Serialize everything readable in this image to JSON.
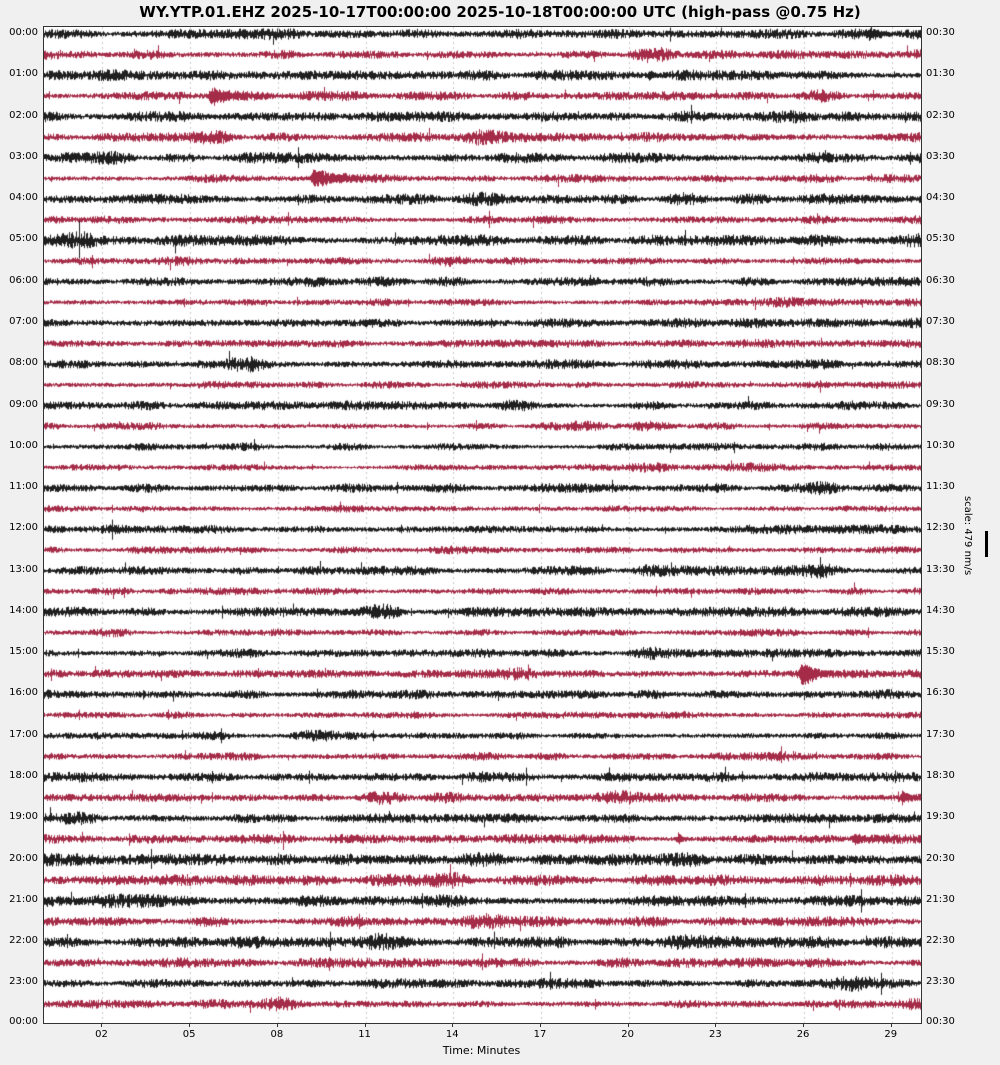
{
  "title": "WY.YTP.01.EHZ 2025-10-17T00:00:00 2025-10-18T00:00:00 UTC (high-pass @0.75 Hz)",
  "xlabel": "Time: Minutes",
  "scale_label": "scale: 479 nm/s",
  "chart_data": {
    "type": "line",
    "subtype": "helicorder-dayplot",
    "station_id": "WY.YTP.01.EHZ",
    "time_span_utc": [
      "2025-10-17T00:00:00",
      "2025-10-18T00:00:00"
    ],
    "filter": "high-pass @0.75 Hz",
    "scale_nm_per_s": 479,
    "minutes_per_row": 30,
    "x_range_minutes": [
      0,
      30
    ],
    "x_ticks": [
      2,
      5,
      8,
      11,
      14,
      17,
      20,
      23,
      26,
      29
    ],
    "x_tick_labels": [
      "02",
      "05",
      "08",
      "11",
      "14",
      "17",
      "20",
      "23",
      "26",
      "29"
    ],
    "left_axis_labels": [
      "00:00",
      "01:00",
      "02:00",
      "03:00",
      "04:00",
      "05:00",
      "06:00",
      "07:00",
      "08:00",
      "09:00",
      "10:00",
      "11:00",
      "12:00",
      "13:00",
      "14:00",
      "15:00",
      "16:00",
      "17:00",
      "18:00",
      "19:00",
      "20:00",
      "21:00",
      "22:00",
      "23:00"
    ],
    "left_axis_bottom_label": "00:00",
    "right_axis_labels": [
      "00:30",
      "01:30",
      "02:30",
      "03:30",
      "04:30",
      "05:30",
      "06:30",
      "07:30",
      "08:30",
      "09:30",
      "10:30",
      "11:30",
      "12:30",
      "13:30",
      "14:30",
      "15:30",
      "16:30",
      "17:30",
      "18:30",
      "19:30",
      "20:30",
      "21:30",
      "22:30",
      "23:30"
    ],
    "right_axis_bottom_label": "00:30",
    "colors": {
      "trace_even": "#1f1f1f",
      "trace_odd": "#a52c48",
      "grid": "#c9c9c9",
      "figure_bg": "#f0f0f0",
      "plot_bg": "#ffffff",
      "axis": "#333333"
    },
    "grid": "vertical-dashed",
    "legend": "none",
    "rows": [
      {
        "start": "00:00",
        "end": "00:30",
        "color": "black",
        "amp": 3.0
      },
      {
        "start": "00:30",
        "end": "01:00",
        "color": "red",
        "amp": 2.8
      },
      {
        "start": "01:00",
        "end": "01:30",
        "color": "black",
        "amp": 3.0
      },
      {
        "start": "01:30",
        "end": "02:00",
        "color": "red",
        "amp": 2.6
      },
      {
        "start": "02:00",
        "end": "02:30",
        "color": "black",
        "amp": 3.0
      },
      {
        "start": "02:30",
        "end": "03:00",
        "color": "red",
        "amp": 2.8
      },
      {
        "start": "03:00",
        "end": "03:30",
        "color": "black",
        "amp": 3.0
      },
      {
        "start": "03:30",
        "end": "04:00",
        "color": "red",
        "amp": 2.6
      },
      {
        "start": "04:00",
        "end": "04:30",
        "color": "black",
        "amp": 3.0
      },
      {
        "start": "04:30",
        "end": "05:00",
        "color": "red",
        "amp": 2.4
      },
      {
        "start": "05:00",
        "end": "05:30",
        "color": "black",
        "amp": 3.2
      },
      {
        "start": "05:30",
        "end": "06:00",
        "color": "red",
        "amp": 2.2
      },
      {
        "start": "06:00",
        "end": "06:30",
        "color": "black",
        "amp": 2.8
      },
      {
        "start": "06:30",
        "end": "07:00",
        "color": "red",
        "amp": 2.4
      },
      {
        "start": "07:00",
        "end": "07:30",
        "color": "black",
        "amp": 3.0
      },
      {
        "start": "07:30",
        "end": "08:00",
        "color": "red",
        "amp": 2.4
      },
      {
        "start": "08:00",
        "end": "08:30",
        "color": "black",
        "amp": 2.8
      },
      {
        "start": "08:30",
        "end": "09:00",
        "color": "red",
        "amp": 2.2
      },
      {
        "start": "09:00",
        "end": "09:30",
        "color": "black",
        "amp": 2.6
      },
      {
        "start": "09:30",
        "end": "10:00",
        "color": "red",
        "amp": 2.2
      },
      {
        "start": "10:00",
        "end": "10:30",
        "color": "black",
        "amp": 2.1
      },
      {
        "start": "10:30",
        "end": "11:00",
        "color": "red",
        "amp": 2.0
      },
      {
        "start": "11:00",
        "end": "11:30",
        "color": "black",
        "amp": 2.6
      },
      {
        "start": "11:30",
        "end": "12:00",
        "color": "red",
        "amp": 2.0
      },
      {
        "start": "12:00",
        "end": "12:30",
        "color": "black",
        "amp": 2.6
      },
      {
        "start": "12:30",
        "end": "13:00",
        "color": "red",
        "amp": 2.2
      },
      {
        "start": "13:00",
        "end": "13:30",
        "color": "black",
        "amp": 2.8
      },
      {
        "start": "13:30",
        "end": "14:00",
        "color": "red",
        "amp": 2.2
      },
      {
        "start": "14:00",
        "end": "14:30",
        "color": "black",
        "amp": 2.8
      },
      {
        "start": "14:30",
        "end": "15:00",
        "color": "red",
        "amp": 2.0
      },
      {
        "start": "15:00",
        "end": "15:30",
        "color": "black",
        "amp": 2.6
      },
      {
        "start": "15:30",
        "end": "16:00",
        "color": "red",
        "amp": 2.4
      },
      {
        "start": "16:00",
        "end": "16:30",
        "color": "black",
        "amp": 2.6
      },
      {
        "start": "16:30",
        "end": "17:00",
        "color": "red",
        "amp": 2.0
      },
      {
        "start": "17:00",
        "end": "17:30",
        "color": "black",
        "amp": 2.2
      },
      {
        "start": "17:30",
        "end": "18:00",
        "color": "red",
        "amp": 2.2
      },
      {
        "start": "18:00",
        "end": "18:30",
        "color": "black",
        "amp": 3.2
      },
      {
        "start": "18:30",
        "end": "19:00",
        "color": "red",
        "amp": 2.6
      },
      {
        "start": "19:00",
        "end": "19:30",
        "color": "black",
        "amp": 2.6
      },
      {
        "start": "19:30",
        "end": "20:00",
        "color": "red",
        "amp": 2.6
      },
      {
        "start": "20:00",
        "end": "20:30",
        "color": "black",
        "amp": 3.6
      },
      {
        "start": "20:30",
        "end": "21:00",
        "color": "red",
        "amp": 3.4
      },
      {
        "start": "21:00",
        "end": "21:30",
        "color": "black",
        "amp": 3.8
      },
      {
        "start": "21:30",
        "end": "22:00",
        "color": "red",
        "amp": 3.0
      },
      {
        "start": "22:00",
        "end": "22:30",
        "color": "black",
        "amp": 3.4
      },
      {
        "start": "22:30",
        "end": "23:00",
        "color": "red",
        "amp": 2.8
      },
      {
        "start": "23:00",
        "end": "23:30",
        "color": "black",
        "amp": 2.8
      },
      {
        "start": "23:30",
        "end": "00:00",
        "color": "red",
        "amp": 2.6
      }
    ],
    "events": [
      {
        "row": 0,
        "row_start": "00:00",
        "minute": 28.2,
        "amp": 4.0,
        "tau": 0.5
      },
      {
        "row": 2,
        "row_start": "01:00",
        "minute": 20.7,
        "amp": 4.0,
        "tau": 0.15
      },
      {
        "row": 3,
        "row_start": "01:30",
        "minute": 5.7,
        "amp": 8.0,
        "tau": 0.8
      },
      {
        "row": 7,
        "row_start": "03:30",
        "minute": 9.2,
        "amp": 9.0,
        "tau": 0.9
      },
      {
        "row": 31,
        "row_start": "15:30",
        "minute": 25.9,
        "amp": 14.0,
        "tau": 0.45
      },
      {
        "row": 37,
        "row_start": "18:30",
        "minute": 29.35,
        "amp": 5.0,
        "tau": 0.3
      },
      {
        "row": 39,
        "row_start": "19:30",
        "minute": 21.7,
        "amp": 6.0,
        "tau": 0.12
      },
      {
        "row": 39,
        "row_start": "19:30",
        "minute": 27.7,
        "amp": 4.5,
        "tau": 0.4
      }
    ]
  }
}
